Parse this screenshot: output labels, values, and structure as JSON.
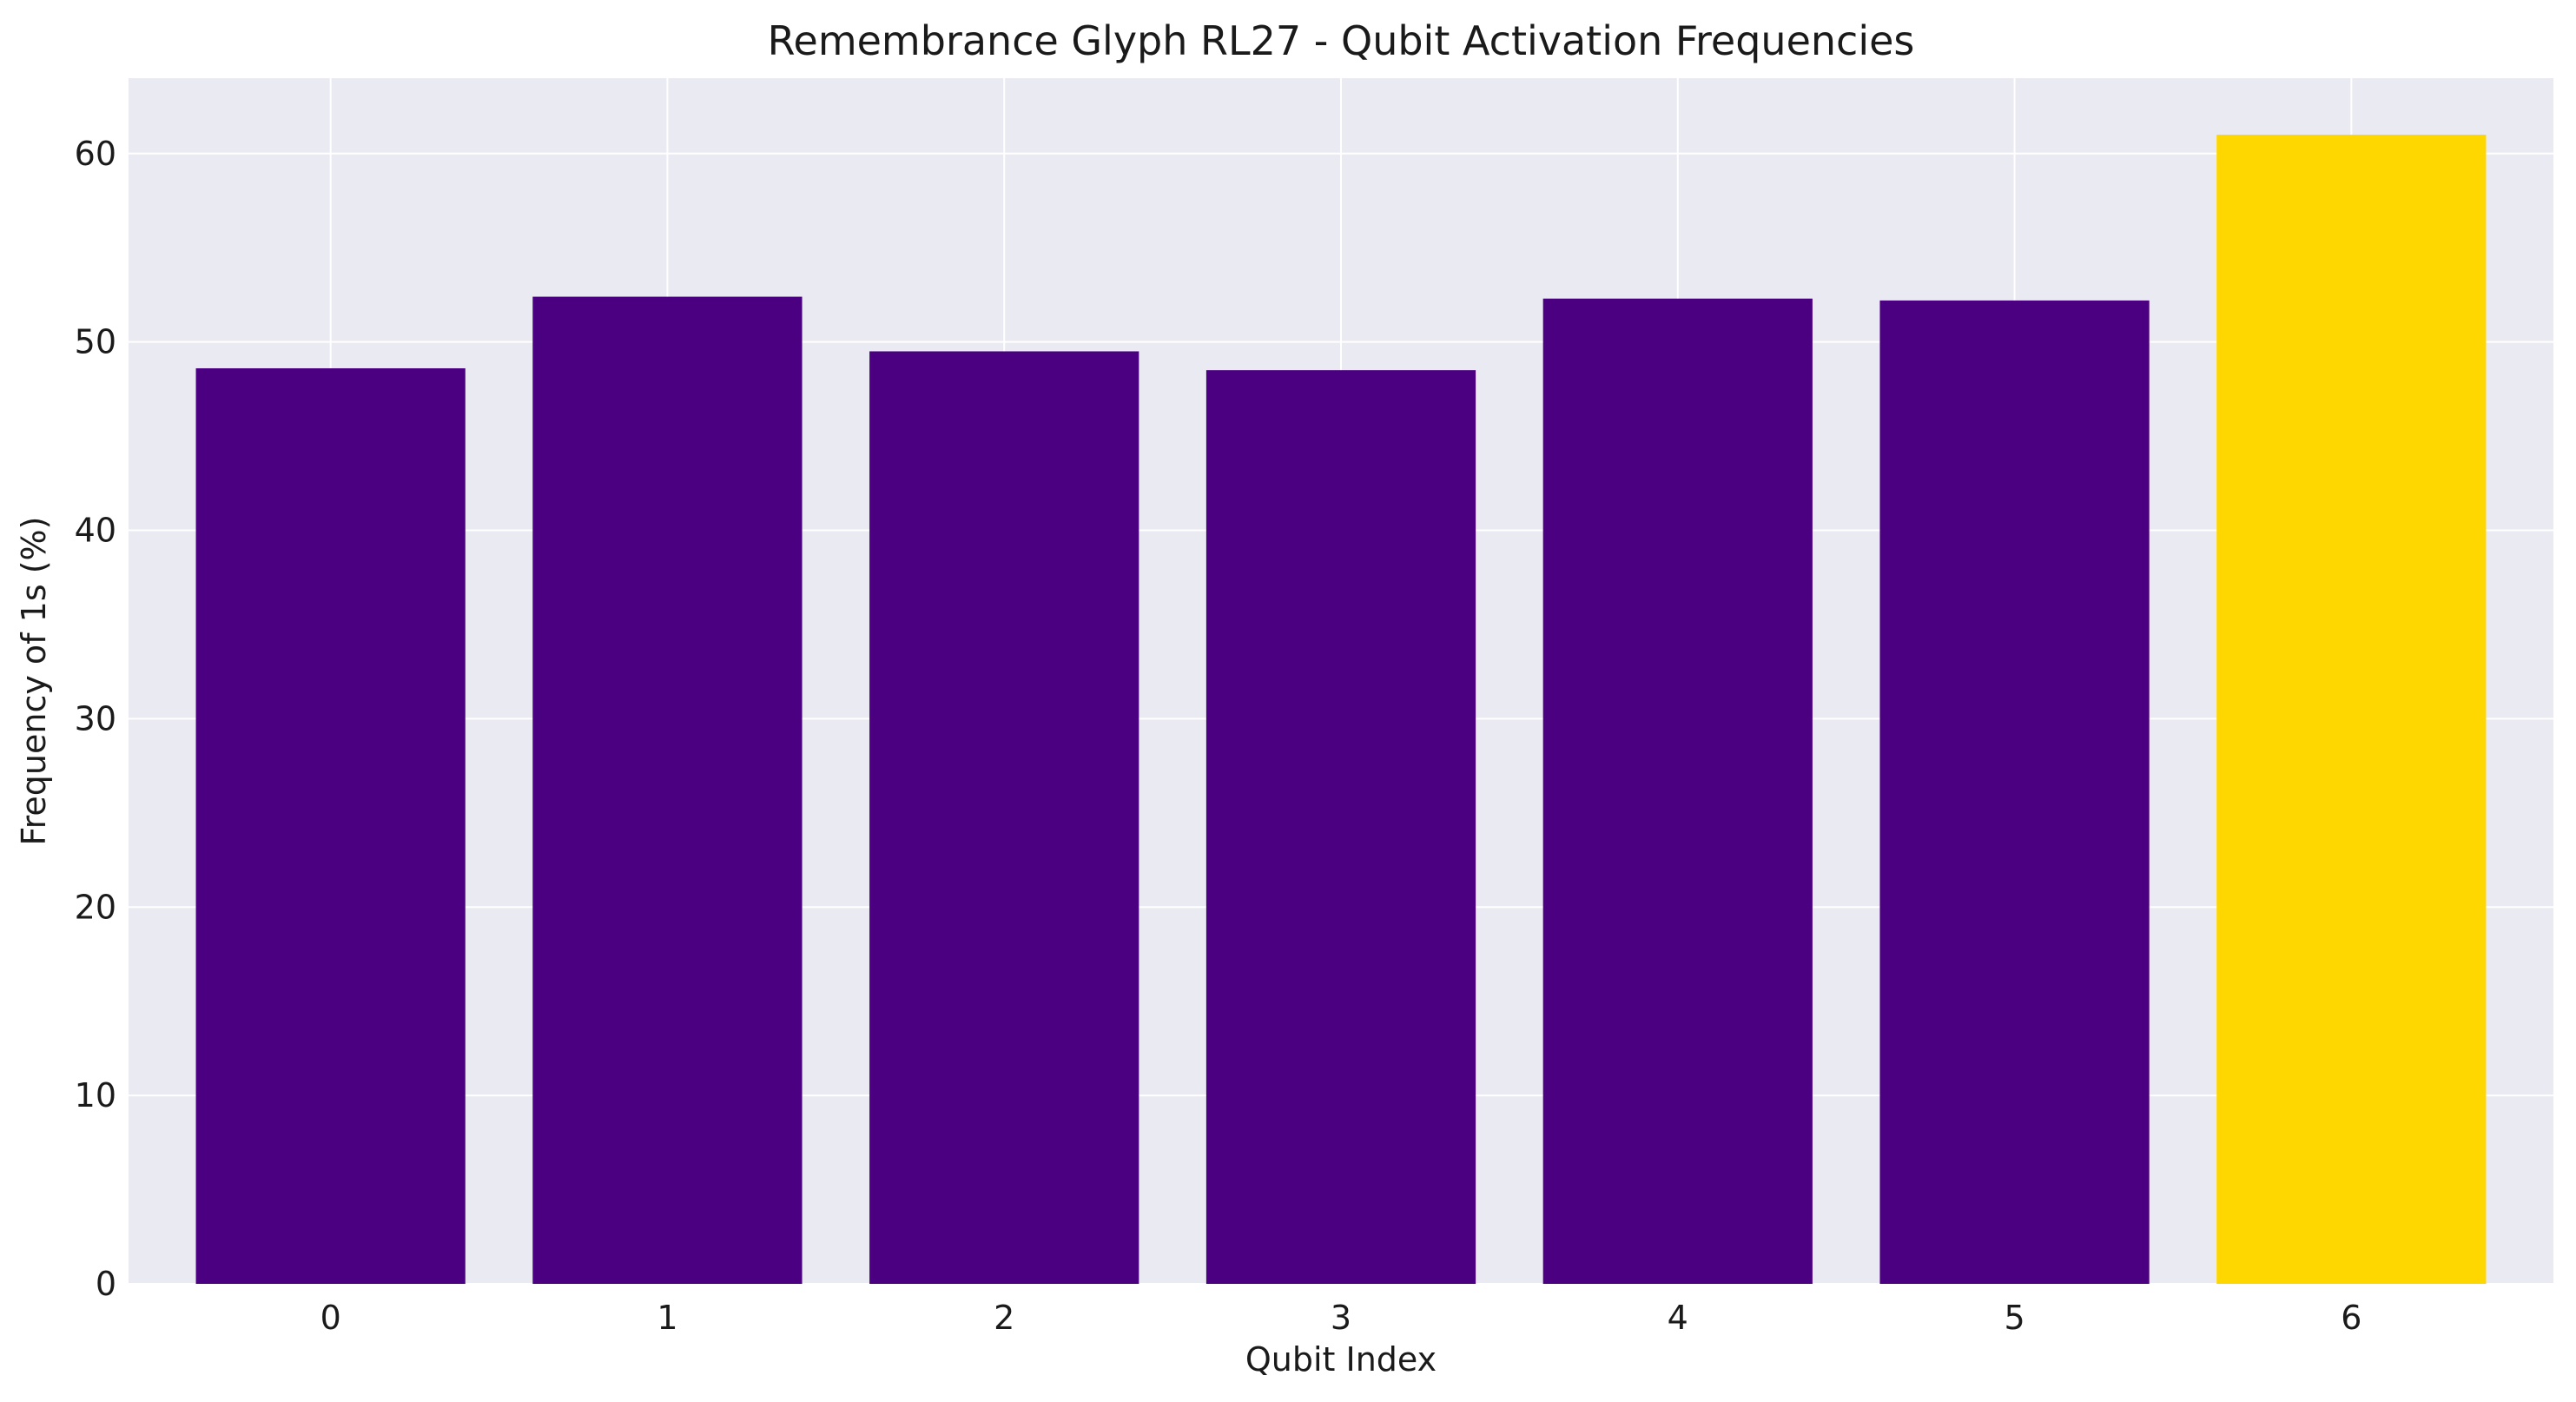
{
  "chart_data": {
    "type": "bar",
    "title": "Remembrance Glyph RL27 - Qubit Activation Frequencies",
    "xlabel": "Qubit Index",
    "ylabel": "Frequency of 1s (%)",
    "categories": [
      "0",
      "1",
      "2",
      "3",
      "4",
      "5",
      "6"
    ],
    "values": [
      48.6,
      52.4,
      49.5,
      48.5,
      52.3,
      52.2,
      61.0
    ],
    "bar_colors": [
      "#4b0082",
      "#4b0082",
      "#4b0082",
      "#4b0082",
      "#4b0082",
      "#4b0082",
      "#ffd700"
    ],
    "ylim": [
      0,
      64
    ],
    "yticks": [
      0,
      10,
      20,
      30,
      40,
      50,
      60
    ],
    "grid": true,
    "background": "#eaeaf2",
    "grid_color": "#ffffff"
  }
}
